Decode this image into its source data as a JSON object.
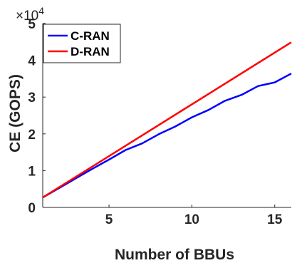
{
  "chart_data": {
    "type": "line",
    "title": "",
    "xlabel": "Number of BBUs",
    "ylabel": "CE (GOPS)",
    "xlim": [
      1,
      16
    ],
    "ylim": [
      0,
      50000
    ],
    "x_ticks": [
      5,
      10,
      15
    ],
    "x_tick_labels": [
      "5",
      "10",
      "15"
    ],
    "y_ticks": [
      0,
      10000,
      20000,
      30000,
      40000,
      50000
    ],
    "y_tick_labels": [
      "0",
      "1",
      "2",
      "3",
      "4",
      "5"
    ],
    "y_multiplier": {
      "base": "×10",
      "exponent": "4"
    },
    "grid": false,
    "legend_position": "top-left",
    "series": [
      {
        "name": "C-RAN",
        "color": "#0000ff",
        "x": [
          1,
          2,
          3,
          4,
          5,
          6,
          7,
          8,
          9,
          10,
          11,
          12,
          13,
          14,
          15,
          16
        ],
        "y": [
          2700,
          5300,
          7900,
          10500,
          13000,
          15600,
          17400,
          19900,
          22000,
          24500,
          26500,
          29000,
          30600,
          33000,
          34000,
          36400
        ]
      },
      {
        "name": "D-RAN",
        "color": "#ff0000",
        "x": [
          1,
          16
        ],
        "y": [
          2700,
          44900
        ]
      }
    ]
  }
}
